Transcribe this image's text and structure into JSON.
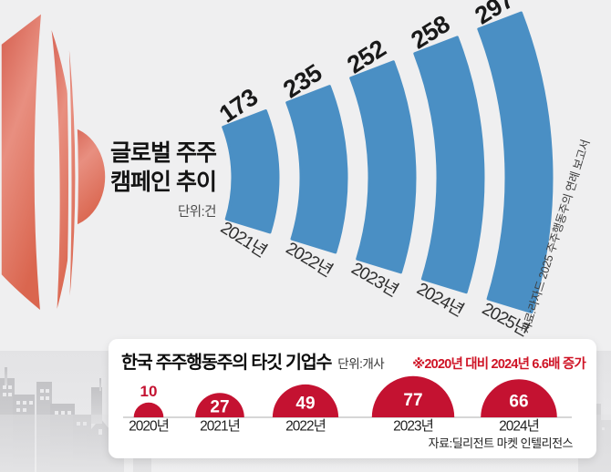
{
  "page": {
    "background": "#efeff0"
  },
  "megaphone": {
    "color_dark": "#d45c4c",
    "color_light": "#e88f80"
  },
  "top_chart": {
    "title_line1": "글로벌 주주",
    "title_line2": "캠페인 추이",
    "unit_label": "단위:건",
    "source_label": "자료:라자드 2025 주주행동주의 연례 보고서",
    "bar_color": "#4a8fc4"
  },
  "bottom_card": {
    "title": "한국 주주행동주의 타깃 기업수",
    "unit_label": "단위:개사",
    "note_label": "※2020년 대비 2024년 6.6배 증가",
    "note_color": "#cf1426",
    "source_label": "자료:딜리전트 마켓 인텔리전스",
    "circle_color": "#c41231"
  },
  "chart_data": [
    {
      "type": "bar",
      "variant": "arc-fan",
      "title": "글로벌 주주 캠페인 추이",
      "unit": "건",
      "categories": [
        "2021년",
        "2022년",
        "2023년",
        "2024년",
        "2025년"
      ],
      "values": [
        173,
        235,
        252,
        258,
        297
      ],
      "color": "#4a8fc4",
      "label_color": "#191919",
      "source": "자료:라자드 2025 주주행동주의 연례 보고서",
      "legend": "off",
      "grid": "off"
    },
    {
      "type": "bar",
      "variant": "semicircle-area",
      "title": "한국 주주행동주의 타깃 기업수",
      "unit": "개사",
      "categories": [
        "2020년",
        "2021년",
        "2022년",
        "2023년",
        "2024년"
      ],
      "values": [
        10,
        27,
        49,
        77,
        66
      ],
      "color": "#c41231",
      "note": "※2020년 대비 2024년 6.6배 증가",
      "source": "자료:딜리전트 마켓 인텔리전스",
      "legend": "off",
      "grid": "off"
    }
  ]
}
